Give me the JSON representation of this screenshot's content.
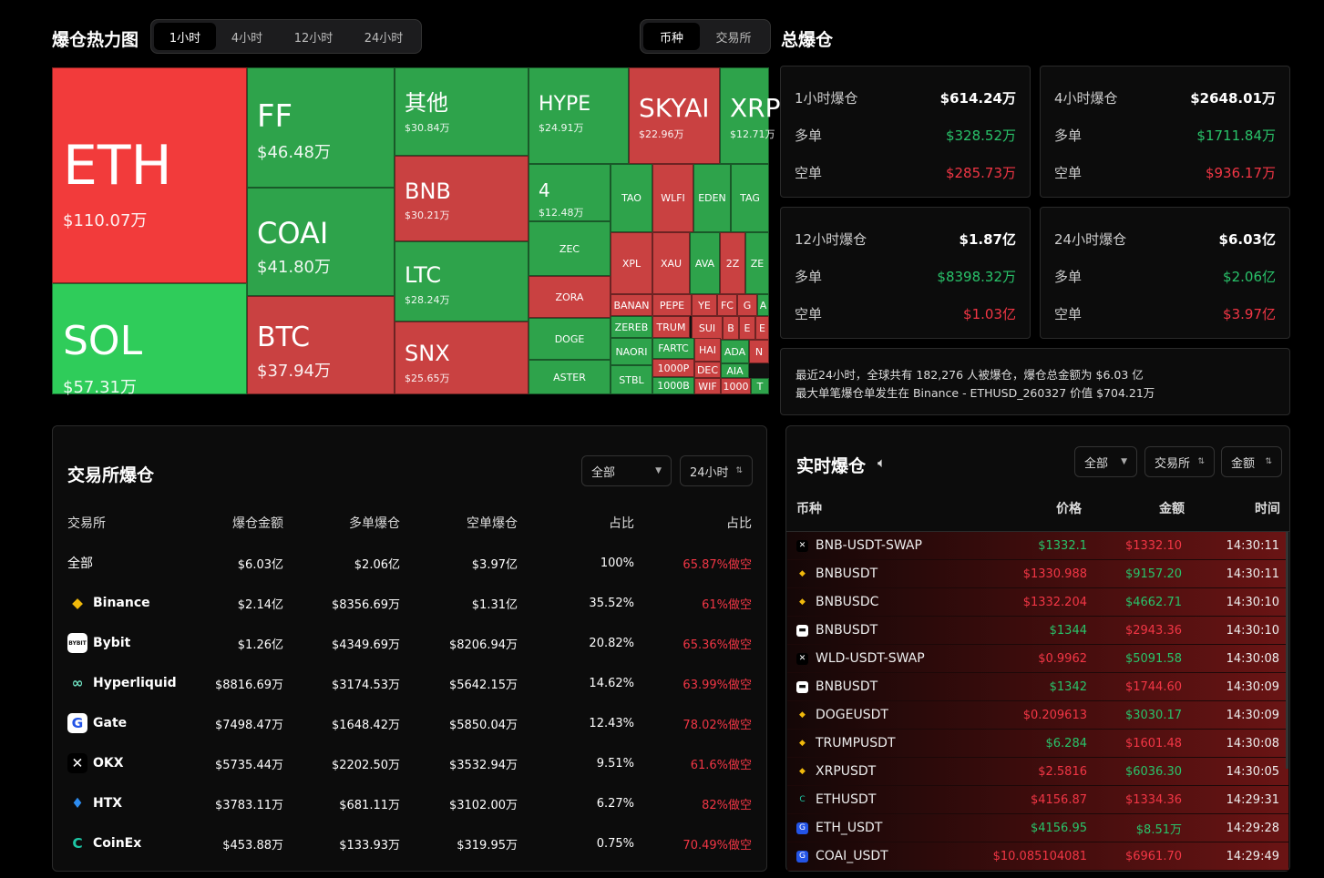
{
  "heatmap": {
    "title": "爆仓热力图",
    "tabs": [
      "1小时",
      "4小时",
      "12小时",
      "24小时"
    ],
    "active_tab": "1小时",
    "blocks": [
      {
        "symbol": "ETH",
        "value": "$110.07万",
        "color": "#f23b3b"
      },
      {
        "symbol": "SOL",
        "value": "$57.31万",
        "color": "#2fcc5a"
      },
      {
        "symbol": "FF",
        "value": "$46.48万",
        "color": "#2ea34b"
      },
      {
        "symbol": "COAI",
        "value": "$41.80万",
        "color": "#2ea34b"
      },
      {
        "symbol": "BTC",
        "value": "$37.94万",
        "color": "#c94141"
      },
      {
        "symbol": "其他",
        "value": "$30.84万",
        "color": "#2ea34b"
      },
      {
        "symbol": "BNB",
        "value": "$30.21万",
        "color": "#c94141"
      },
      {
        "symbol": "LTC",
        "value": "$28.24万",
        "color": "#2ea34b"
      },
      {
        "symbol": "SNX",
        "value": "$25.65万",
        "color": "#c94141"
      },
      {
        "symbol": "HYPE",
        "value": "$24.91万",
        "color": "#2ea34b"
      },
      {
        "symbol": "SKYAI",
        "value": "$22.96万",
        "color": "#c94141"
      },
      {
        "symbol": "XRP",
        "value": "$12.71万",
        "color": "#2ea34b"
      },
      {
        "symbol": "4",
        "value": "$12.48万",
        "color": "#2ea34b"
      }
    ],
    "small": [
      "TAO",
      "WLFI",
      "EDEN",
      "TAG",
      "ZEC",
      "XPL",
      "XAU",
      "AVA",
      "2Z",
      "ZE",
      "ZORA",
      "BANAN",
      "PEPE",
      "YE",
      "FC",
      "G",
      "A",
      "DOGE",
      "ZEREB",
      "TRUM",
      "SUI",
      "B",
      "E",
      "E",
      "NAORI",
      "FARTC",
      "HAI",
      "ADA",
      "N",
      "ASTER",
      "1000P",
      "DEC",
      "AIA",
      "STBL",
      "1000B",
      "WIF",
      "1000",
      "T"
    ]
  },
  "toggle": {
    "options": [
      "币种",
      "交易所"
    ],
    "active": "币种"
  },
  "total": {
    "title": "总爆仓",
    "cards": [
      {
        "label": "1小时爆仓",
        "total": "$614.24万",
        "long_label": "多单",
        "long": "$328.52万",
        "short_label": "空单",
        "short": "$285.73万"
      },
      {
        "label": "4小时爆仓",
        "total": "$2648.01万",
        "long_label": "多单",
        "long": "$1711.84万",
        "short_label": "空单",
        "short": "$936.17万"
      },
      {
        "label": "12小时爆仓",
        "total": "$1.87亿",
        "long_label": "多单",
        "long": "$8398.32万",
        "short_label": "空单",
        "short": "$1.03亿"
      },
      {
        "label": "24小时爆仓",
        "total": "$6.03亿",
        "long_label": "多单",
        "long": "$2.06亿",
        "short_label": "空单",
        "short": "$3.97亿"
      }
    ],
    "note1": "最近24小时，全球共有 182,276 人被爆仓，爆仓总金额为 $6.03 亿",
    "note2": "最大单笔爆仓单发生在 Binance - ETHUSD_260327 价值 $704.21万"
  },
  "exchange": {
    "title": "交易所爆仓",
    "filter": "全部",
    "period": "24小时",
    "headers": [
      "交易所",
      "爆仓金额",
      "多单爆仓",
      "空单爆仓",
      "占比",
      "占比"
    ],
    "rows": [
      {
        "name": "全部",
        "amount": "$6.03亿",
        "long": "$2.06亿",
        "short": "$3.97亿",
        "share": "100%",
        "ratio": "65.87%做空",
        "logo": ""
      },
      {
        "name": "Binance",
        "amount": "$2.14亿",
        "long": "$8356.69万",
        "short": "$1.31亿",
        "share": "35.52%",
        "ratio": "61%做空",
        "logo": "binance"
      },
      {
        "name": "Bybit",
        "amount": "$1.26亿",
        "long": "$4349.69万",
        "short": "$8206.94万",
        "share": "20.82%",
        "ratio": "65.36%做空",
        "logo": "bybit"
      },
      {
        "name": "Hyperliquid",
        "amount": "$8816.69万",
        "long": "$3174.53万",
        "short": "$5642.15万",
        "share": "14.62%",
        "ratio": "63.99%做空",
        "logo": "hyperliquid"
      },
      {
        "name": "Gate",
        "amount": "$7498.47万",
        "long": "$1648.42万",
        "short": "$5850.04万",
        "share": "12.43%",
        "ratio": "78.02%做空",
        "logo": "gate"
      },
      {
        "name": "OKX",
        "amount": "$5735.44万",
        "long": "$2202.50万",
        "short": "$3532.94万",
        "share": "9.51%",
        "ratio": "61.6%做空",
        "logo": "okx"
      },
      {
        "name": "HTX",
        "amount": "$3783.11万",
        "long": "$681.11万",
        "short": "$3102.00万",
        "share": "6.27%",
        "ratio": "82%做空",
        "logo": "htx"
      },
      {
        "name": "CoinEx",
        "amount": "$453.88万",
        "long": "$133.93万",
        "short": "$319.95万",
        "share": "0.75%",
        "ratio": "70.49%做空",
        "logo": "coinex"
      }
    ]
  },
  "live": {
    "title": "实时爆仓",
    "filters": [
      "全部",
      "交易所",
      "金额"
    ],
    "headers": [
      "币种",
      "价格",
      "金额",
      "时间"
    ],
    "rows": [
      {
        "symbol": "BNB-USDT-SWAP",
        "price": "$1332.1",
        "amount": "$1332.10",
        "time": "14:30:11",
        "pc": "g",
        "ac": "r",
        "logo": "okx"
      },
      {
        "symbol": "BNBUSDT",
        "price": "$1330.988",
        "amount": "$9157.20",
        "time": "14:30:11",
        "pc": "r",
        "ac": "g",
        "logo": "binance"
      },
      {
        "symbol": "BNBUSDC",
        "price": "$1332.204",
        "amount": "$4662.71",
        "time": "14:30:10",
        "pc": "r",
        "ac": "g",
        "logo": "binance"
      },
      {
        "symbol": "BNBUSDT",
        "price": "$1344",
        "amount": "$2943.36",
        "time": "14:30:10",
        "pc": "g",
        "ac": "r",
        "logo": "bybit"
      },
      {
        "symbol": "WLD-USDT-SWAP",
        "price": "$0.9962",
        "amount": "$5091.58",
        "time": "14:30:08",
        "pc": "r",
        "ac": "g",
        "logo": "okx"
      },
      {
        "symbol": "BNBUSDT",
        "price": "$1342",
        "amount": "$1744.60",
        "time": "14:30:09",
        "pc": "g",
        "ac": "r",
        "logo": "bybit"
      },
      {
        "symbol": "DOGEUSDT",
        "price": "$0.209613",
        "amount": "$3030.17",
        "time": "14:30:09",
        "pc": "r",
        "ac": "g",
        "logo": "binance"
      },
      {
        "symbol": "TRUMPUSDT",
        "price": "$6.284",
        "amount": "$1601.48",
        "time": "14:30:08",
        "pc": "g",
        "ac": "r",
        "logo": "binance"
      },
      {
        "symbol": "XRPUSDT",
        "price": "$2.5816",
        "amount": "$6036.30",
        "time": "14:30:05",
        "pc": "r",
        "ac": "g",
        "logo": "binance"
      },
      {
        "symbol": "ETHUSDT",
        "price": "$4156.87",
        "amount": "$1334.36",
        "time": "14:29:31",
        "pc": "r",
        "ac": "r",
        "logo": "coinex"
      },
      {
        "symbol": "ETH_USDT",
        "price": "$4156.95",
        "amount": "$8.51万",
        "time": "14:29:28",
        "pc": "g",
        "ac": "g",
        "logo": "gate"
      },
      {
        "symbol": "COAI_USDT",
        "price": "$10.085104081",
        "amount": "$6961.70",
        "time": "14:29:49",
        "pc": "r",
        "ac": "r",
        "logo": "gate"
      }
    ]
  }
}
